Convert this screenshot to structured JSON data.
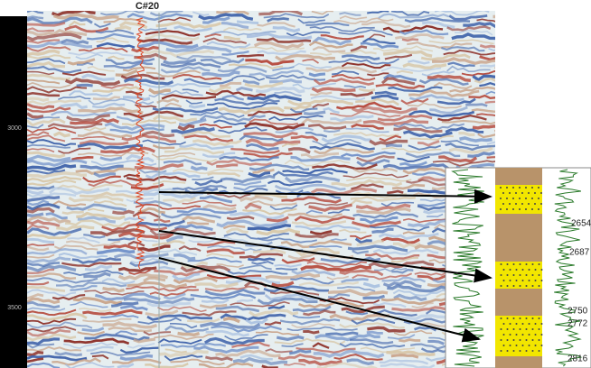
{
  "well": "C#20",
  "time_labels": [
    "3000",
    "3500"
  ],
  "depth_labels": [
    "2654",
    "2687",
    "2750",
    "2772",
    "2816"
  ]
}
